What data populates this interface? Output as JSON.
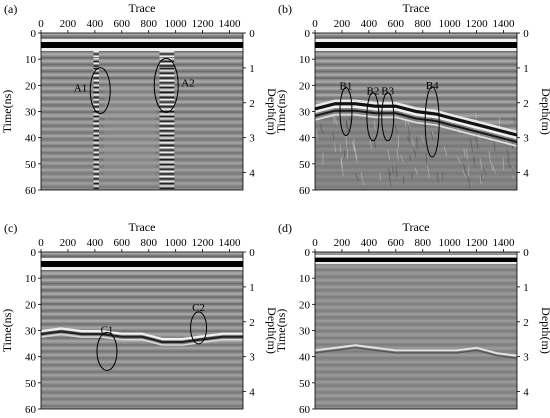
{
  "chart_data": [
    {
      "type": "heatmap",
      "panel_label": "(a)",
      "xlabel": "Trace",
      "ylabel_left": "Time(ns)",
      "ylabel_right": "Depth(m)",
      "xlim": [
        0,
        1500
      ],
      "ylim": [
        0,
        60
      ],
      "x_ticks": [
        "0",
        "200",
        "400",
        "600",
        "800",
        "1000",
        "1200",
        "1400"
      ],
      "y_ticks": [
        "0",
        "10",
        "20",
        "30",
        "40",
        "50",
        "60"
      ],
      "depth_ticks": [
        "0",
        "1",
        "2",
        "3",
        "4"
      ],
      "annotations": [
        {
          "label": "A1",
          "trace": 440,
          "time": 22
        },
        {
          "label": "A2",
          "trace": 930,
          "time": 20
        }
      ]
    },
    {
      "type": "heatmap",
      "panel_label": "(b)",
      "xlabel": "Trace",
      "ylabel_left": "Time(ns)",
      "ylabel_right": "Depth(m)",
      "xlim": [
        0,
        1500
      ],
      "ylim": [
        0,
        60
      ],
      "x_ticks": [
        "0",
        "200",
        "400",
        "600",
        "800",
        "1000",
        "1200",
        "1400"
      ],
      "y_ticks": [
        "0",
        "10",
        "20",
        "30",
        "40",
        "50",
        "60"
      ],
      "depth_ticks": [
        "0",
        "1",
        "2",
        "3",
        "4"
      ],
      "annotations": [
        {
          "label": "B1",
          "trace": 230,
          "time": 30
        },
        {
          "label": "B2",
          "trace": 430,
          "time": 32
        },
        {
          "label": "B3",
          "trace": 540,
          "time": 32
        },
        {
          "label": "B4",
          "trace": 870,
          "time": 34
        }
      ]
    },
    {
      "type": "heatmap",
      "panel_label": "(c)",
      "xlabel": "Trace",
      "ylabel_left": "Time(ns)",
      "ylabel_right": "Depth(m)",
      "xlim": [
        0,
        1500
      ],
      "ylim": [
        0,
        60
      ],
      "x_ticks": [
        "0",
        "200",
        "400",
        "600",
        "800",
        "1000",
        "1200",
        "1400"
      ],
      "y_ticks": [
        "0",
        "10",
        "20",
        "30",
        "40",
        "50",
        "60"
      ],
      "depth_ticks": [
        "0",
        "1",
        "2",
        "3",
        "4"
      ],
      "annotations": [
        {
          "label": "C1",
          "trace": 490,
          "time": 38
        },
        {
          "label": "C2",
          "trace": 1170,
          "time": 29
        }
      ]
    },
    {
      "type": "heatmap",
      "panel_label": "(d)",
      "xlabel": "Trace",
      "ylabel_left": "Time(ns)",
      "ylabel_right": "Depth(m)",
      "xlim": [
        0,
        1500
      ],
      "ylim": [
        0,
        60
      ],
      "x_ticks": [
        "0",
        "200",
        "400",
        "600",
        "800",
        "1000",
        "1200",
        "1400"
      ],
      "y_ticks": [
        "0",
        "10",
        "20",
        "30",
        "40",
        "50",
        "60"
      ],
      "depth_ticks": [
        "0",
        "1",
        "2",
        "3",
        "4"
      ],
      "annotations": []
    }
  ]
}
